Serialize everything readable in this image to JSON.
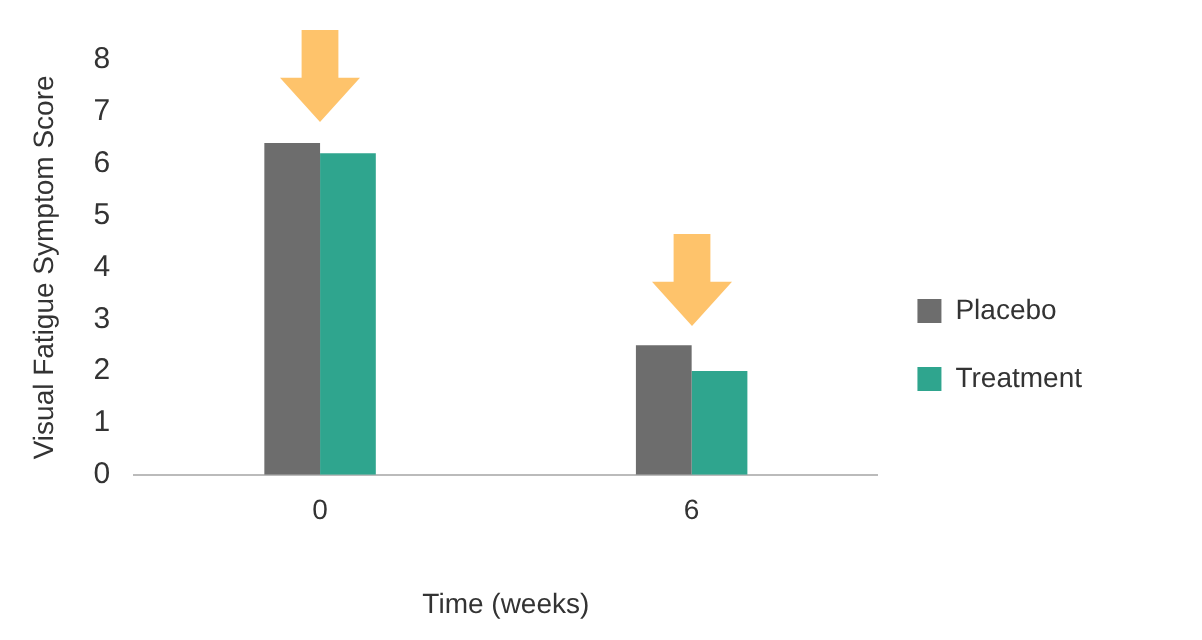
{
  "chart_data": {
    "type": "bar",
    "xlabel": "Time (weeks)",
    "ylabel": "Visual Fatigue Symptom Score",
    "categories": [
      "0",
      "6"
    ],
    "series": [
      {
        "name": "Placebo",
        "color": "#6d6d6d",
        "values": [
          6.4,
          2.5
        ]
      },
      {
        "name": "Treatment",
        "color": "#2fa58e",
        "values": [
          6.2,
          2.0
        ]
      }
    ],
    "ylim": [
      0,
      8
    ],
    "yticks": [
      0,
      1,
      2,
      3,
      4,
      5,
      6,
      7,
      8
    ],
    "grid": false,
    "legend": "right"
  }
}
